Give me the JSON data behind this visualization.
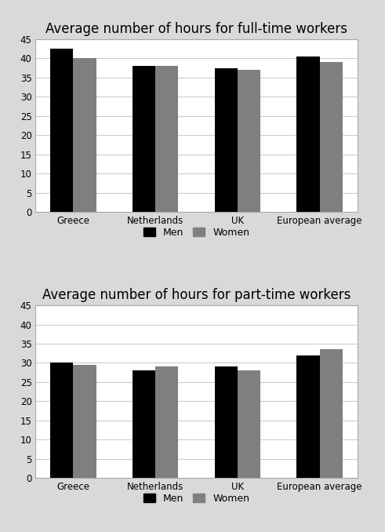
{
  "fulltime": {
    "title": "Average number of hours for full-time workers",
    "categories": [
      "Greece",
      "Netherlands",
      "UK",
      "European average"
    ],
    "men": [
      42.5,
      38.0,
      37.5,
      40.5
    ],
    "women": [
      40.0,
      38.0,
      37.0,
      39.0
    ],
    "ylim": [
      0,
      45
    ],
    "yticks": [
      0,
      5,
      10,
      15,
      20,
      25,
      30,
      35,
      40,
      45
    ]
  },
  "parttime": {
    "title": "Average number of hours for part-time workers",
    "categories": [
      "Greece",
      "Netherlands",
      "UK",
      "European average"
    ],
    "men": [
      30.0,
      28.0,
      29.0,
      32.0
    ],
    "women": [
      29.5,
      29.0,
      28.0,
      33.5
    ],
    "ylim": [
      0,
      45
    ],
    "yticks": [
      0,
      5,
      10,
      15,
      20,
      25,
      30,
      35,
      40,
      45
    ]
  },
  "men_color": "#000000",
  "women_color": "#7f7f7f",
  "bar_width": 0.28,
  "legend_labels": [
    "Men",
    "Women"
  ],
  "figure_bg": "#d9d9d9",
  "axes_bg": "#ffffff",
  "title_fontsize": 12,
  "tick_fontsize": 8.5,
  "legend_fontsize": 9
}
